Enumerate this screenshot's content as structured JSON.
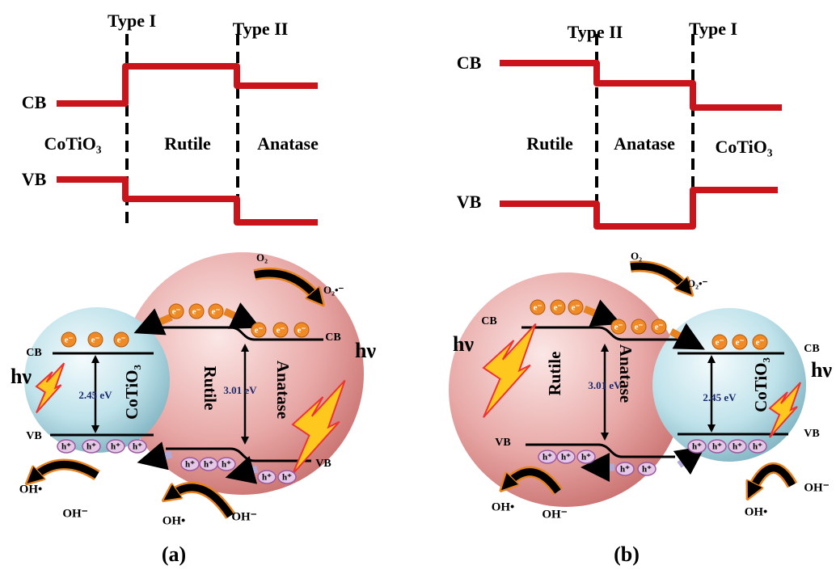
{
  "panel_a": {
    "label": "(a)",
    "band_diagram": {
      "interface_left": "Type I",
      "interface_right": "Type II",
      "cb": "CB",
      "vb": "VB",
      "regions": [
        "CoTiO₃",
        "Rutile",
        "Anatase"
      ]
    },
    "scheme": {
      "materials": [
        "CoTiO₃",
        "Rutile",
        "Anatase"
      ],
      "band_gaps": [
        "2.45 eV",
        "3.01 eV"
      ],
      "band_labels": [
        "CB",
        "VB",
        "CB",
        "VB"
      ],
      "light": [
        "hν",
        "hν"
      ],
      "species": [
        "O₂",
        "O₂•⁻",
        "OH•",
        "OH⁻",
        "OH•",
        "OH⁻"
      ],
      "electron": "e⁻",
      "hole": "h⁺"
    }
  },
  "panel_b": {
    "label": "(b)",
    "band_diagram": {
      "interface_left": "Type II",
      "interface_right": "Type I",
      "cb": "CB",
      "vb": "VB",
      "regions": [
        "Rutile",
        "Anatase",
        "CoTiO₃"
      ]
    },
    "scheme": {
      "materials": [
        "Rutile",
        "Anatase",
        "CoTiO₃"
      ],
      "band_gaps": [
        "3.01 eV",
        "2.45 eV"
      ],
      "band_labels": [
        "CB",
        "VB",
        "CB",
        "VB"
      ],
      "light": [
        "hν",
        "hν"
      ],
      "species": [
        "O₂",
        "O₂•⁻",
        "OH•",
        "OH⁻",
        "OH⁻",
        "OH•"
      ],
      "electron": "e⁻",
      "hole": "h⁺"
    }
  }
}
